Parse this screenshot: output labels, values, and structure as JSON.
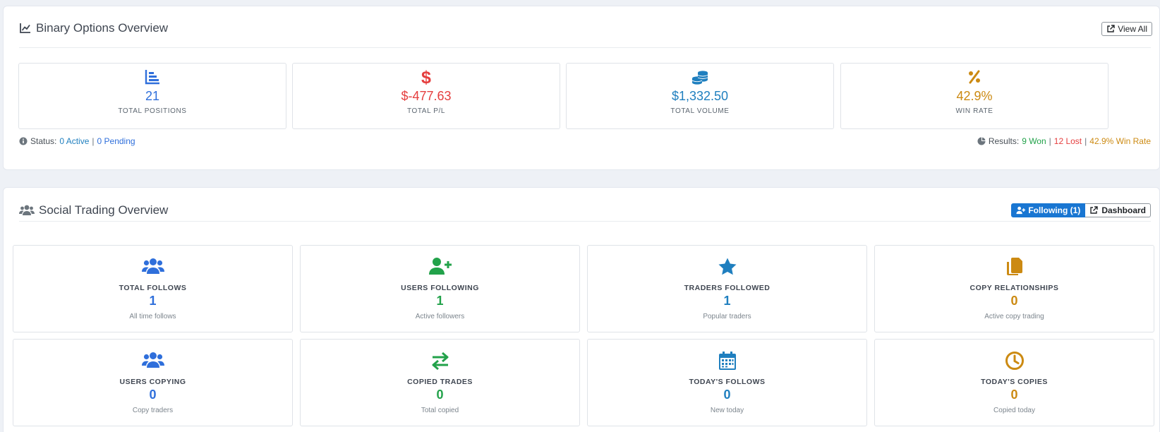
{
  "binary": {
    "title": "Binary Options Overview",
    "view_all_label": "View All",
    "stats": [
      {
        "icon": "bar-chart-icon",
        "value": "21",
        "label": "TOTAL POSITIONS",
        "color": "#2f6fdb"
      },
      {
        "icon": "dollar-icon",
        "value": "$-477.63",
        "label": "TOTAL P/L",
        "color": "#e53e3e"
      },
      {
        "icon": "coins-icon",
        "value": "$1,332.50",
        "label": "TOTAL VOLUME",
        "color": "#1f7fbf"
      },
      {
        "icon": "percent-icon",
        "value": "42.9%",
        "label": "WIN RATE",
        "color": "#cc8a12"
      }
    ],
    "status": {
      "label": "Status:",
      "active": "0 Active",
      "sep": "|",
      "pending": "0 Pending"
    },
    "results": {
      "label": "Results:",
      "won": "9 Won",
      "lost": "12 Lost",
      "win_rate": "42.9% Win Rate",
      "sep": "|"
    }
  },
  "social": {
    "title": "Social Trading Overview",
    "following_label": "Following (1)",
    "dashboard_label": "Dashboard",
    "tiles": [
      {
        "icon": "users-icon",
        "label": "TOTAL FOLLOWS",
        "value": "1",
        "sub": "All time follows",
        "color": "#2f6fdb"
      },
      {
        "icon": "user-plus-icon",
        "label": "USERS FOLLOWING",
        "value": "1",
        "sub": "Active followers",
        "color": "#22a24a"
      },
      {
        "icon": "star-icon",
        "label": "TRADERS FOLLOWED",
        "value": "1",
        "sub": "Popular traders",
        "color": "#1f7fbf"
      },
      {
        "icon": "copy-icon",
        "label": "COPY RELATIONSHIPS",
        "value": "0",
        "sub": "Active copy trading",
        "color": "#cc8a12"
      },
      {
        "icon": "users-icon",
        "label": "USERS COPYING",
        "value": "0",
        "sub": "Copy traders",
        "color": "#2f6fdb"
      },
      {
        "icon": "exchange-icon",
        "label": "COPIED TRADES",
        "value": "0",
        "sub": "Total copied",
        "color": "#22a24a"
      },
      {
        "icon": "calendar-icon",
        "label": "TODAY'S FOLLOWS",
        "value": "0",
        "sub": "New today",
        "color": "#1f7fbf"
      },
      {
        "icon": "clock-icon",
        "label": "TODAY'S COPIES",
        "value": "0",
        "sub": "Copied today",
        "color": "#cc8a12"
      }
    ]
  },
  "colors": {
    "accent": "#1976d2",
    "won": "#22a24a",
    "lost": "#e53e3e",
    "win_rate": "#cc8a12",
    "link": "#2f6fdb"
  }
}
